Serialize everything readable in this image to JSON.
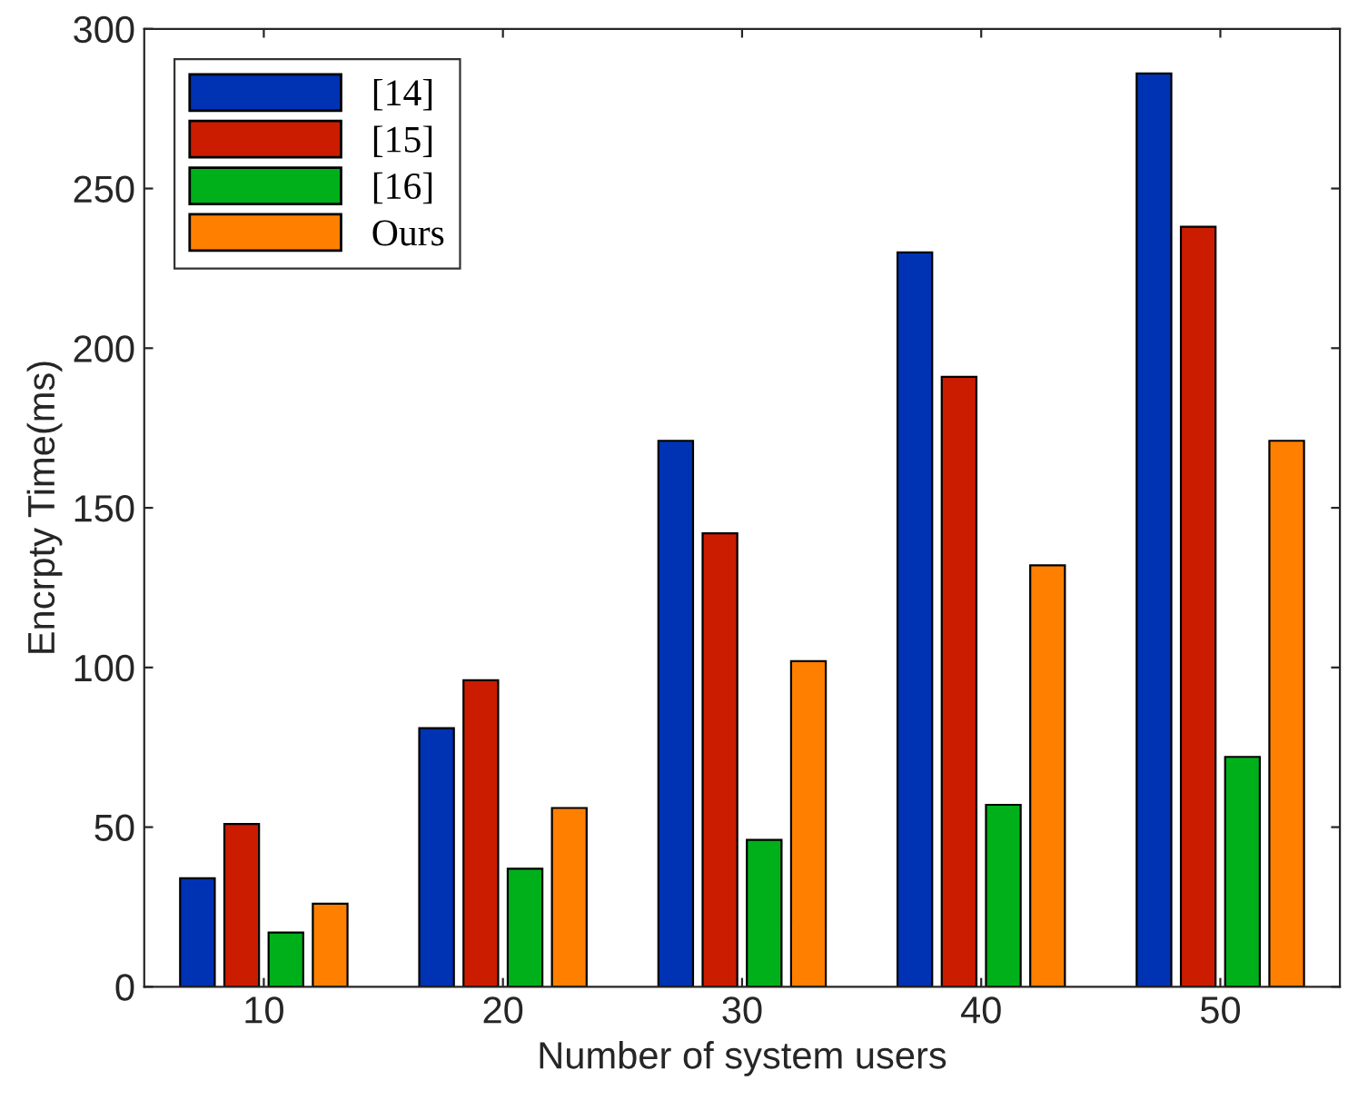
{
  "chart_data": {
    "type": "bar",
    "xlabel": "Number of system users",
    "ylabel": "Encrpty Time(ms)",
    "categories": [
      "10",
      "20",
      "30",
      "40",
      "50"
    ],
    "series": [
      {
        "name": "[14]",
        "color": "#0032b4",
        "values": [
          34,
          81,
          171,
          230,
          286
        ]
      },
      {
        "name": "[15]",
        "color": "#cc1c00",
        "values": [
          51,
          96,
          142,
          191,
          238
        ]
      },
      {
        "name": "[16]",
        "color": "#00b01a",
        "values": [
          17,
          37,
          46,
          57,
          72
        ]
      },
      {
        "name": "Ours",
        "color": "#ff8000",
        "values": [
          26,
          56,
          102,
          132,
          171
        ]
      }
    ],
    "ylim": [
      0,
      300
    ],
    "yticks": [
      0,
      50,
      100,
      150,
      200,
      250,
      300
    ],
    "grid": false,
    "legend": "top left"
  }
}
